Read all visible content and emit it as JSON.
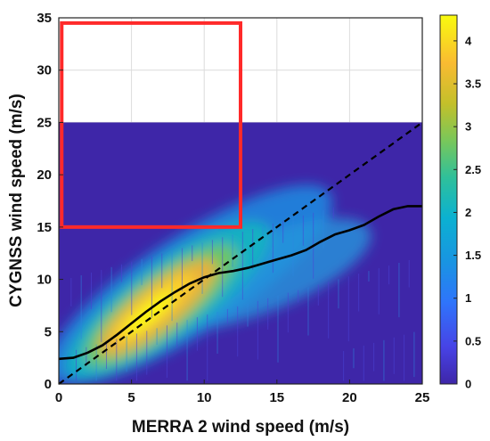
{
  "chart_data": {
    "type": "heatmap",
    "title": "",
    "xlabel": "MERRA 2 wind speed (m/s)",
    "ylabel": "CYGNSS wind speed (m/s)",
    "xlim": [
      0,
      25
    ],
    "ylim": [
      0,
      35
    ],
    "xticks": [
      "0",
      "5",
      "10",
      "15",
      "20",
      "25"
    ],
    "yticks": [
      "0",
      "5",
      "10",
      "15",
      "20",
      "25",
      "30",
      "35"
    ],
    "heatmap_extent": {
      "x": [
        0,
        25
      ],
      "y": [
        0,
        25
      ]
    },
    "density_peak": {
      "x": 7,
      "y": 7.5
    },
    "colorbar": {
      "range": [
        0,
        4.3
      ],
      "ticks": [
        "0",
        "0.5",
        "1",
        "1.5",
        "2",
        "2.5",
        "3",
        "3.5",
        "4"
      ],
      "colormap": "parula"
    },
    "grid": true,
    "series": [
      {
        "style": "solid",
        "color": "#000000",
        "x": [
          0,
          1,
          2,
          3,
          4,
          5,
          6,
          7,
          8,
          9,
          10,
          11,
          12,
          13,
          14,
          15,
          16,
          17,
          18,
          19,
          20,
          21,
          22,
          23,
          24,
          25
        ],
        "y": [
          2.4,
          2.5,
          3.0,
          3.7,
          4.7,
          5.8,
          6.9,
          7.9,
          8.8,
          9.6,
          10.2,
          10.6,
          10.8,
          11.1,
          11.5,
          11.9,
          12.3,
          12.8,
          13.6,
          14.3,
          14.7,
          15.2,
          16.0,
          16.7,
          17.0,
          17.0
        ]
      },
      {
        "style": "dashed",
        "color": "#000000",
        "x": [
          0,
          25
        ],
        "y": [
          0,
          25
        ]
      }
    ],
    "annotations": [
      {
        "type": "rectangle",
        "color": "#ff2a2a",
        "x": [
          0.2,
          12.5
        ],
        "y": [
          15,
          34.5
        ]
      }
    ]
  }
}
